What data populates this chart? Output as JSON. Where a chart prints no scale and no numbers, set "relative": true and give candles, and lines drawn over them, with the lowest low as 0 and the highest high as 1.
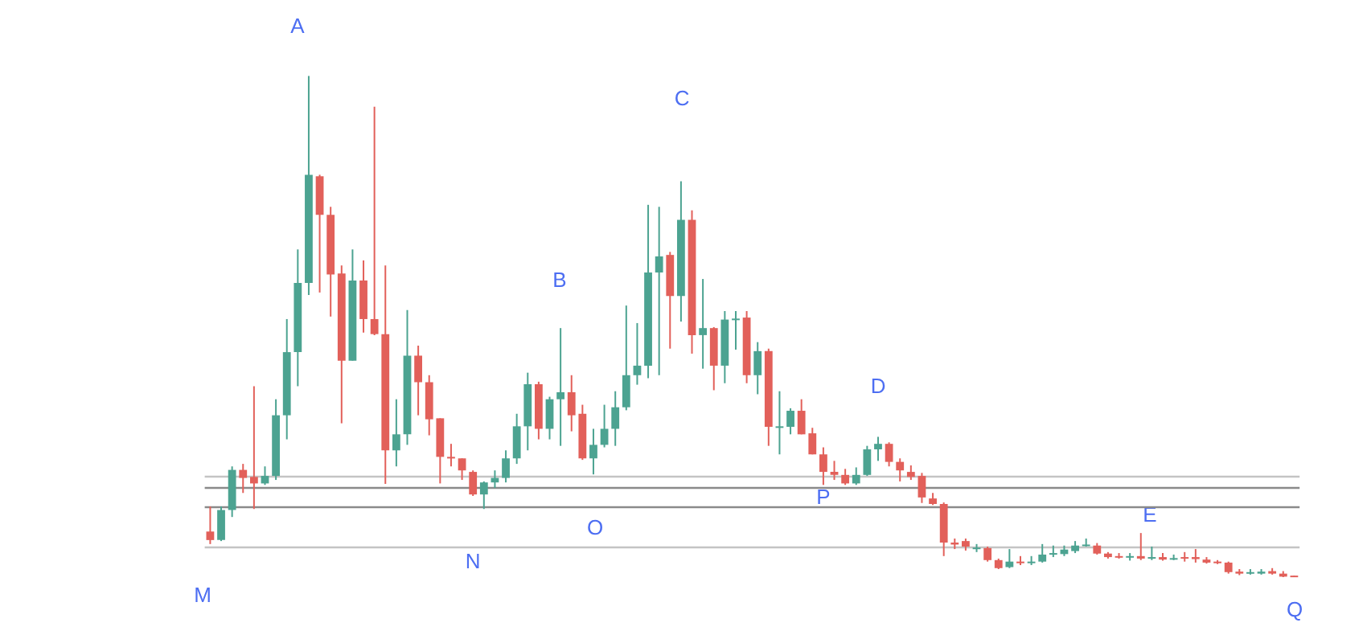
{
  "chart_data": {
    "type": "candlestick",
    "relative": true,
    "categories": [
      null,
      null,
      null,
      null,
      null,
      null,
      null,
      null,
      null,
      null,
      null,
      null,
      null,
      null,
      null,
      null,
      null,
      null,
      null,
      null,
      null,
      null,
      null,
      null,
      null,
      null,
      null,
      null,
      null,
      null,
      null,
      null,
      null,
      null,
      null,
      null,
      null,
      null,
      null,
      null,
      null,
      null,
      null,
      null,
      null,
      null,
      null,
      null,
      null,
      null,
      null,
      null,
      null,
      null,
      null,
      null,
      null,
      null,
      null,
      null,
      null,
      null,
      null,
      null,
      null,
      null,
      null,
      null,
      null,
      null,
      null,
      null,
      null,
      null,
      null,
      null,
      null,
      null,
      null,
      null,
      null,
      null,
      null,
      null,
      null,
      null,
      null,
      null,
      null,
      null,
      null,
      null,
      null,
      null,
      null,
      null,
      null,
      null,
      null,
      null
    ],
    "ohlc": [
      [
        0.091,
        0.141,
        0.066,
        0.074
      ],
      [
        0.074,
        0.141,
        0.072,
        0.134
      ],
      [
        0.134,
        0.221,
        0.12,
        0.214
      ],
      [
        0.214,
        0.226,
        0.168,
        0.198
      ],
      [
        0.2,
        0.381,
        0.136,
        0.187
      ],
      [
        0.187,
        0.221,
        0.184,
        0.202
      ],
      [
        0.202,
        0.355,
        0.194,
        0.323
      ],
      [
        0.323,
        0.515,
        0.275,
        0.449
      ],
      [
        0.449,
        0.654,
        0.381,
        0.587
      ],
      [
        0.587,
        1,
        0.563,
        0.803
      ],
      [
        0.8,
        0.803,
        0.568,
        0.723
      ],
      [
        0.723,
        0.739,
        0.52,
        0.604
      ],
      [
        0.606,
        0.622,
        0.307,
        0.432
      ],
      [
        0.432,
        0.654,
        0.432,
        0.592
      ],
      [
        0.592,
        0.632,
        0.488,
        0.515
      ],
      [
        0.515,
        0.939,
        0.483,
        0.485
      ],
      [
        0.485,
        0.622,
        0.186,
        0.253
      ],
      [
        0.253,
        0.355,
        0.221,
        0.285
      ],
      [
        0.285,
        0.533,
        0.264,
        0.442
      ],
      [
        0.442,
        0.462,
        0.323,
        0.389
      ],
      [
        0.389,
        0.403,
        0.283,
        0.315
      ],
      [
        0.317,
        0.317,
        0.187,
        0.24
      ],
      [
        0.24,
        0.266,
        0.221,
        0.238
      ],
      [
        0.237,
        0.237,
        0.194,
        0.213
      ],
      [
        0.21,
        0.213,
        0.162,
        0.165
      ],
      [
        0.165,
        0.191,
        0.136,
        0.189
      ],
      [
        0.189,
        0.213,
        0.178,
        0.198
      ],
      [
        0.198,
        0.253,
        0.189,
        0.237
      ],
      [
        0.237,
        0.326,
        0.226,
        0.301
      ],
      [
        0.301,
        0.408,
        0.253,
        0.385
      ],
      [
        0.385,
        0.39,
        0.275,
        0.296
      ],
      [
        0.296,
        0.36,
        0.275,
        0.355
      ],
      [
        0.355,
        0.497,
        0.262,
        0.369
      ],
      [
        0.369,
        0.403,
        0.291,
        0.323
      ],
      [
        0.326,
        0.344,
        0.234,
        0.237
      ],
      [
        0.237,
        0.296,
        0.205,
        0.264
      ],
      [
        0.264,
        0.344,
        0.259,
        0.296
      ],
      [
        0.296,
        0.371,
        0.262,
        0.339
      ],
      [
        0.339,
        0.542,
        0.333,
        0.403
      ],
      [
        0.403,
        0.507,
        0.384,
        0.422
      ],
      [
        0.422,
        0.743,
        0.397,
        0.608
      ],
      [
        0.608,
        0.739,
        0.403,
        0.64
      ],
      [
        0.643,
        0.649,
        0.456,
        0.561
      ],
      [
        0.561,
        0.79,
        0.51,
        0.713
      ],
      [
        0.713,
        0.732,
        0.446,
        0.483
      ],
      [
        0.483,
        0.595,
        0.416,
        0.497
      ],
      [
        0.497,
        0.499,
        0.373,
        0.422
      ],
      [
        0.422,
        0.531,
        0.387,
        0.514
      ],
      [
        0.513,
        0.531,
        0.454,
        0.516
      ],
      [
        0.518,
        0.531,
        0.387,
        0.403
      ],
      [
        0.403,
        0.469,
        0.365,
        0.451
      ],
      [
        0.451,
        0.456,
        0.262,
        0.3
      ],
      [
        0.299,
        0.371,
        0.245,
        0.301
      ],
      [
        0.3,
        0.337,
        0.285,
        0.332
      ],
      [
        0.332,
        0.355,
        0.285,
        0.285
      ],
      [
        0.287,
        0.298,
        0.245,
        0.245
      ],
      [
        0.245,
        0.259,
        0.184,
        0.21
      ],
      [
        0.21,
        0.232,
        0.194,
        0.204
      ],
      [
        0.204,
        0.216,
        0.184,
        0.187
      ],
      [
        0.187,
        0.219,
        0.184,
        0.204
      ],
      [
        0.204,
        0.262,
        0.202,
        0.255
      ],
      [
        0.255,
        0.28,
        0.232,
        0.266
      ],
      [
        0.266,
        0.269,
        0.221,
        0.23
      ],
      [
        0.23,
        0.237,
        0.191,
        0.213
      ],
      [
        0.21,
        0.223,
        0.194,
        0.2
      ],
      [
        0.202,
        0.208,
        0.148,
        0.159
      ],
      [
        0.157,
        0.168,
        0.144,
        0.146
      ],
      [
        0.146,
        0.149,
        0.042,
        0.069
      ],
      [
        0.069,
        0.077,
        0.056,
        0.065
      ],
      [
        0.072,
        0.077,
        0.053,
        0.061
      ],
      [
        0.056,
        0.066,
        0.05,
        0.059
      ],
      [
        0.058,
        0.061,
        0.031,
        0.034
      ],
      [
        0.034,
        0.037,
        0.016,
        0.018
      ],
      [
        0.02,
        0.056,
        0.018,
        0.031
      ],
      [
        0.031,
        0.042,
        0.024,
        0.028
      ],
      [
        0.028,
        0.042,
        0.024,
        0.031
      ],
      [
        0.031,
        0.066,
        0.029,
        0.045
      ],
      [
        0.045,
        0.063,
        0.04,
        0.048
      ],
      [
        0.046,
        0.063,
        0.042,
        0.055
      ],
      [
        0.052,
        0.072,
        0.048,
        0.063
      ],
      [
        0.063,
        0.077,
        0.061,
        0.065
      ],
      [
        0.063,
        0.068,
        0.045,
        0.047
      ],
      [
        0.047,
        0.05,
        0.037,
        0.04
      ],
      [
        0.042,
        0.048,
        0.037,
        0.04
      ],
      [
        0.04,
        0.048,
        0.033,
        0.042
      ],
      [
        0.042,
        0.088,
        0.034,
        0.037
      ],
      [
        0.037,
        0.061,
        0.034,
        0.04
      ],
      [
        0.04,
        0.048,
        0.033,
        0.035
      ],
      [
        0.036,
        0.045,
        0.034,
        0.038
      ],
      [
        0.04,
        0.05,
        0.031,
        0.037
      ],
      [
        0.04,
        0.056,
        0.029,
        0.036
      ],
      [
        0.035,
        0.04,
        0.027,
        0.029
      ],
      [
        0.031,
        0.034,
        0.026,
        0.028
      ],
      [
        0.029,
        0.031,
        0.007,
        0.01
      ],
      [
        0.011,
        0.016,
        0.004,
        0.007
      ],
      [
        0.007,
        0.016,
        0.005,
        0.01
      ],
      [
        0.007,
        0.016,
        0.005,
        0.011
      ],
      [
        0.012,
        0.018,
        0.005,
        0.007
      ],
      [
        0.007,
        0.012,
        0,
        0.001
      ],
      [
        0.003,
        0.003,
        0,
        0
      ]
    ],
    "colors": [
      "#e2605a",
      "#4ca391",
      "#4ca391",
      "#e2605a",
      "#e2605a",
      "#4ca391",
      "#4ca391",
      "#4ca391",
      "#4ca391",
      "#4ca391",
      "#e2605a",
      "#e2605a",
      "#e2605a",
      "#4ca391",
      "#e2605a",
      "#e2605a",
      "#e2605a",
      "#4ca391",
      "#4ca391",
      "#e2605a",
      "#e2605a",
      "#e2605a",
      "#e2605a",
      "#e2605a",
      "#e2605a",
      "#4ca391",
      "#4ca391",
      "#4ca391",
      "#4ca391",
      "#4ca391",
      "#e2605a",
      "#4ca391",
      "#4ca391",
      "#e2605a",
      "#e2605a",
      "#4ca391",
      "#4ca391",
      "#4ca391",
      "#4ca391",
      "#4ca391",
      "#4ca391",
      "#4ca391",
      "#e2605a",
      "#4ca391",
      "#e2605a",
      "#4ca391",
      "#e2605a",
      "#4ca391",
      "#4ca391",
      "#e2605a",
      "#4ca391",
      "#e2605a",
      "#4ca391",
      "#4ca391",
      "#e2605a",
      "#e2605a",
      "#e2605a",
      "#e2605a",
      "#e2605a",
      "#4ca391",
      "#4ca391",
      "#4ca391",
      "#e2605a",
      "#e2605a",
      "#e2605a",
      "#e2605a",
      "#e2605a",
      "#e2605a",
      "#e2605a",
      "#e2605a",
      "#4ca391",
      "#e2605a",
      "#e2605a",
      "#4ca391",
      "#e2605a",
      "#4ca391",
      "#4ca391",
      "#4ca391",
      "#4ca391",
      "#4ca391",
      "#4ca391",
      "#e2605a",
      "#e2605a",
      "#e2605a",
      "#4ca391",
      "#e2605a",
      "#4ca391",
      "#e2605a",
      "#4ca391",
      "#e2605a",
      "#e2605a",
      "#e2605a",
      "#e2605a",
      "#e2605a",
      "#e2605a",
      "#4ca391",
      "#4ca391",
      "#e2605a",
      "#e2605a",
      "#e2605a"
    ],
    "annotations": [
      "A",
      "B",
      "C",
      "D",
      "E",
      "M",
      "N",
      "O",
      "P",
      "Q"
    ],
    "ref_lines": [
      {
        "axis": "y",
        "value": 0.205,
        "color": "#c4c4c4"
      },
      {
        "axis": "y",
        "value": 0.18,
        "color": "#8a8a8a"
      },
      {
        "axis": "y",
        "value": 0.135,
        "color": "#8a8a8a"
      },
      {
        "axis": "y",
        "value": 0.064,
        "color": "#c4c4c4"
      }
    ]
  }
}
